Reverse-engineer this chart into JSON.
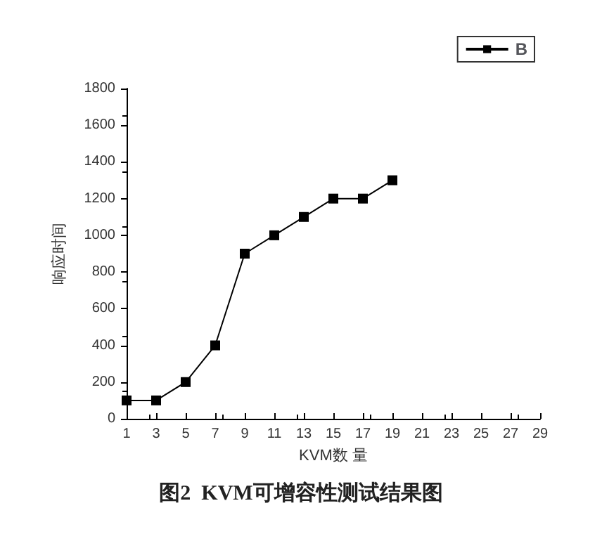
{
  "chart_data": {
    "type": "line",
    "title": "图2  KVM可增容性测试结果图",
    "xlabel": "KVM数 量",
    "ylabel": "响应时间",
    "x": [
      1,
      3,
      5,
      7,
      9,
      11,
      13,
      15,
      17,
      19
    ],
    "series": [
      {
        "name": "B",
        "color": "#000000",
        "values": [
          100,
          100,
          200,
          400,
          900,
          1000,
          1100,
          1200,
          1200,
          1300
        ]
      }
    ],
    "xlim": [
      1,
      29
    ],
    "xticks": [
      1,
      3,
      5,
      7,
      9,
      11,
      13,
      15,
      17,
      19,
      21,
      23,
      25,
      27,
      29
    ],
    "ylim": [
      0,
      1800
    ],
    "yticks": [
      0,
      200,
      400,
      600,
      800,
      1000,
      1200,
      1400,
      1600,
      1800
    ],
    "grid": false,
    "legend": "top right",
    "marker": "square",
    "line_style": "solid"
  }
}
